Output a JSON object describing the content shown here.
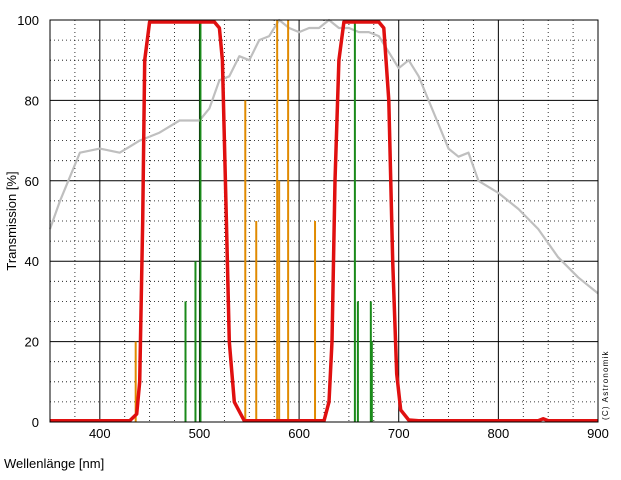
{
  "chart_data": {
    "type": "line",
    "xlabel": "Wellenlänge [nm]",
    "ylabel": "Transmission [%]",
    "xlim": [
      350,
      900
    ],
    "ylim": [
      0,
      100
    ],
    "x_ticks": [
      "400",
      "500",
      "600",
      "700",
      "800",
      "900"
    ],
    "y_ticks": [
      "0",
      "20",
      "40",
      "60",
      "80",
      "100"
    ],
    "grid": "solid major, dotted minor",
    "annotation": "(C) Astronomik",
    "colors": {
      "filter": "#e01010",
      "sensor": "#bfbfbf",
      "lamp_lines": "#e08a00",
      "emission_lines": "#1a8a1a"
    },
    "series": [
      {
        "kind": "filter-transmission",
        "x": [
          350,
          430,
          437,
          440,
          443,
          445,
          450,
          460,
          480,
          500,
          515,
          520,
          523,
          527,
          530,
          535,
          545,
          600,
          625,
          630,
          633,
          636,
          640,
          645,
          660,
          680,
          685,
          690,
          694,
          698,
          702,
          710,
          720,
          800,
          840,
          845,
          850,
          855,
          900
        ],
        "y": [
          0.3,
          0.3,
          2,
          10,
          50,
          90,
          99.5,
          99.5,
          99.5,
          99.5,
          99.5,
          98,
          90,
          50,
          20,
          5,
          0.3,
          0.3,
          0.3,
          5,
          20,
          60,
          90,
          99.5,
          99.5,
          99.5,
          98,
          80,
          40,
          12,
          3,
          0.5,
          0.3,
          0.3,
          0.3,
          0.8,
          0.3,
          0.3,
          0.3
        ]
      },
      {
        "kind": "sensor-response",
        "x": [
          350,
          360,
          380,
          400,
          420,
          440,
          460,
          480,
          490,
          500,
          510,
          520,
          530,
          540,
          550,
          560,
          570,
          580,
          590,
          600,
          610,
          620,
          630,
          640,
          650,
          660,
          670,
          680,
          690,
          700,
          710,
          720,
          730,
          740,
          750,
          760,
          770,
          780,
          800,
          820,
          840,
          860,
          880,
          900
        ],
        "y": [
          48,
          55,
          67,
          68,
          67,
          70,
          72,
          75,
          75,
          75,
          78,
          85,
          86,
          91,
          90,
          95,
          96,
          100,
          98,
          97,
          98,
          98,
          100,
          98,
          98,
          97,
          97,
          96,
          92,
          88,
          90,
          86,
          80,
          74,
          68,
          66,
          67,
          60,
          57,
          53,
          48,
          41,
          36,
          32
        ]
      }
    ],
    "lines": [
      {
        "kind": "lamp",
        "x": 436,
        "y": 20
      },
      {
        "kind": "lamp",
        "x": 546,
        "y": 80
      },
      {
        "kind": "lamp",
        "x": 557,
        "y": 50
      },
      {
        "kind": "lamp",
        "x": 578,
        "y": 100
      },
      {
        "kind": "lamp",
        "x": 580,
        "y": 60
      },
      {
        "kind": "lamp",
        "x": 589,
        "y": 100
      },
      {
        "kind": "lamp",
        "x": 616,
        "y": 50
      },
      {
        "kind": "emission",
        "x": 486,
        "y": 30
      },
      {
        "kind": "emission",
        "x": 496,
        "y": 40
      },
      {
        "kind": "emission",
        "x": 501,
        "y": 100
      },
      {
        "kind": "emission",
        "x": 656,
        "y": 100
      },
      {
        "kind": "emission",
        "x": 659,
        "y": 30
      },
      {
        "kind": "emission",
        "x": 672,
        "y": 30
      },
      {
        "kind": "emission",
        "x": 673,
        "y": 20
      }
    ]
  }
}
